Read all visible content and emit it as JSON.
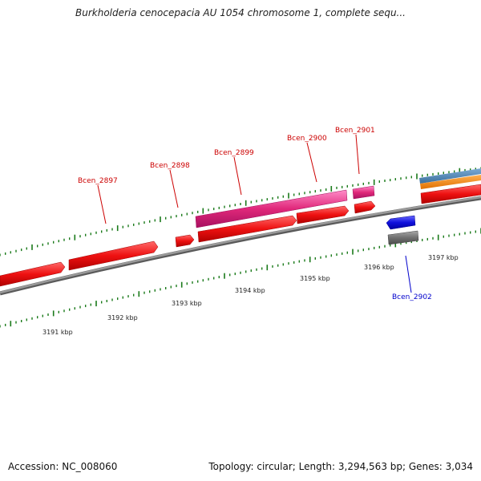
{
  "header": {
    "title": "Burkholderia cenocepacia AU 1054 chromosome 1, complete sequ..."
  },
  "footer": {
    "accession": "Accession: NC_008060",
    "summary": "Topology: circular; Length: 3,294,563 bp; Genes: 3,034"
  },
  "scale": {
    "ticks": [
      {
        "label": "3191 kbp"
      },
      {
        "label": "3192 kbp"
      },
      {
        "label": "3193 kbp"
      },
      {
        "label": "3194 kbp"
      },
      {
        "label": "3195 kbp"
      },
      {
        "label": "3196 kbp"
      },
      {
        "label": "3197 kbp"
      }
    ]
  },
  "genes": [
    {
      "label": "Bcen_2897",
      "strand": "forward"
    },
    {
      "label": "Bcen_2898",
      "strand": "forward"
    },
    {
      "label": "Bcen_2899",
      "strand": "forward"
    },
    {
      "label": "Bcen_2900",
      "strand": "forward"
    },
    {
      "label": "Bcen_2901",
      "strand": "forward"
    },
    {
      "label": "Bcen_2902",
      "strand": "reverse"
    }
  ],
  "colors": {
    "cds_forward": "#ee1111",
    "cds_pink": "#e0287a",
    "cds_reverse": "#1111dd",
    "reverse_gray": "#707070",
    "backbone": "#888888",
    "tick": "#1a7a1a",
    "label_forward": "#cc0000",
    "label_reverse": "#0000cc",
    "orange": "#ff8c00",
    "steelblue": "#4682b4"
  }
}
